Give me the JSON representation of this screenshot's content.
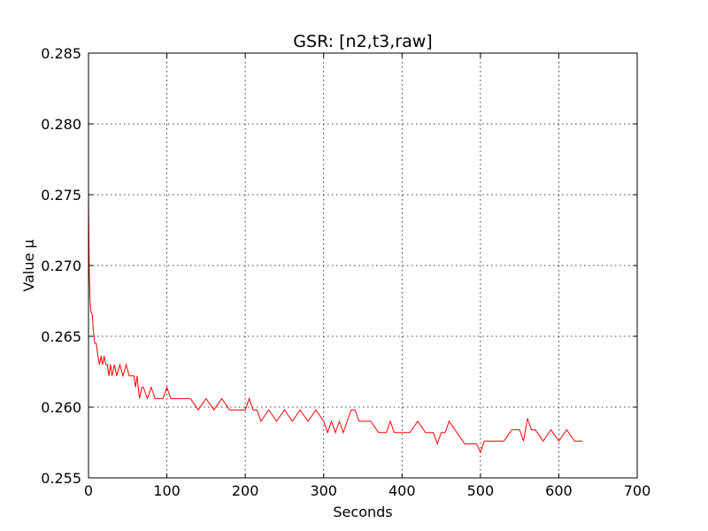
{
  "chart_data": {
    "type": "line",
    "title": "GSR: [n2,t3,raw]",
    "xlabel": "Seconds",
    "ylabel": "Value µ",
    "xlim": [
      0,
      700
    ],
    "ylim": [
      0.255,
      0.285
    ],
    "xticks": [
      0,
      100,
      200,
      300,
      400,
      500,
      600,
      700
    ],
    "yticks": [
      0.255,
      0.26,
      0.265,
      0.27,
      0.275,
      0.28,
      0.285
    ],
    "xtick_labels": [
      "0",
      "100",
      "200",
      "300",
      "400",
      "500",
      "600",
      "700"
    ],
    "ytick_labels": [
      "0.255",
      "0.260",
      "0.265",
      "0.270",
      "0.275",
      "0.280",
      "0.285"
    ],
    "grid": true,
    "legend": "none",
    "series": [
      {
        "color": "#ff0000",
        "x": [
          0,
          0.5,
          1,
          2,
          3,
          4,
          5,
          6,
          8,
          10,
          12,
          14,
          16,
          18,
          20,
          22,
          24,
          26,
          28,
          30,
          33,
          36,
          40,
          44,
          48,
          52,
          55,
          58,
          60,
          62,
          65,
          68,
          70,
          75,
          80,
          85,
          90,
          95,
          100,
          105,
          110,
          120,
          130,
          140,
          150,
          160,
          170,
          180,
          190,
          200,
          205,
          210,
          215,
          220,
          230,
          240,
          250,
          260,
          270,
          280,
          290,
          300,
          305,
          310,
          315,
          320,
          325,
          330,
          335,
          340,
          345,
          350,
          360,
          370,
          380,
          385,
          390,
          400,
          410,
          420,
          430,
          440,
          445,
          450,
          455,
          460,
          470,
          480,
          490,
          495,
          500,
          505,
          510,
          520,
          530,
          540,
          550,
          555,
          560,
          565,
          570,
          580,
          590,
          600,
          610,
          620,
          630
        ],
        "y": [
          0.275,
          0.272,
          0.2695,
          0.2675,
          0.2668,
          0.2666,
          0.2665,
          0.2655,
          0.2645,
          0.2645,
          0.2636,
          0.263,
          0.2636,
          0.263,
          0.2636,
          0.263,
          0.263,
          0.2622,
          0.263,
          0.2622,
          0.263,
          0.2622,
          0.263,
          0.2622,
          0.263,
          0.2622,
          0.2622,
          0.2622,
          0.2614,
          0.2622,
          0.2606,
          0.2614,
          0.2614,
          0.2606,
          0.2614,
          0.2606,
          0.2606,
          0.2606,
          0.2614,
          0.2606,
          0.2606,
          0.2606,
          0.2606,
          0.2598,
          0.2606,
          0.2598,
          0.2606,
          0.2598,
          0.2598,
          0.2598,
          0.2606,
          0.2598,
          0.2598,
          0.259,
          0.2598,
          0.259,
          0.2598,
          0.259,
          0.2598,
          0.259,
          0.2598,
          0.259,
          0.2582,
          0.259,
          0.2582,
          0.259,
          0.2582,
          0.259,
          0.2598,
          0.2598,
          0.259,
          0.259,
          0.259,
          0.2582,
          0.2582,
          0.259,
          0.2582,
          0.2582,
          0.2582,
          0.259,
          0.2582,
          0.2582,
          0.2574,
          0.2582,
          0.2582,
          0.259,
          0.2582,
          0.2574,
          0.2574,
          0.2574,
          0.2568,
          0.2576,
          0.2576,
          0.2576,
          0.2576,
          0.2584,
          0.2584,
          0.2576,
          0.2592,
          0.2584,
          0.2584,
          0.2576,
          0.2584,
          0.2576,
          0.2584,
          0.2576,
          0.2576
        ]
      }
    ]
  }
}
